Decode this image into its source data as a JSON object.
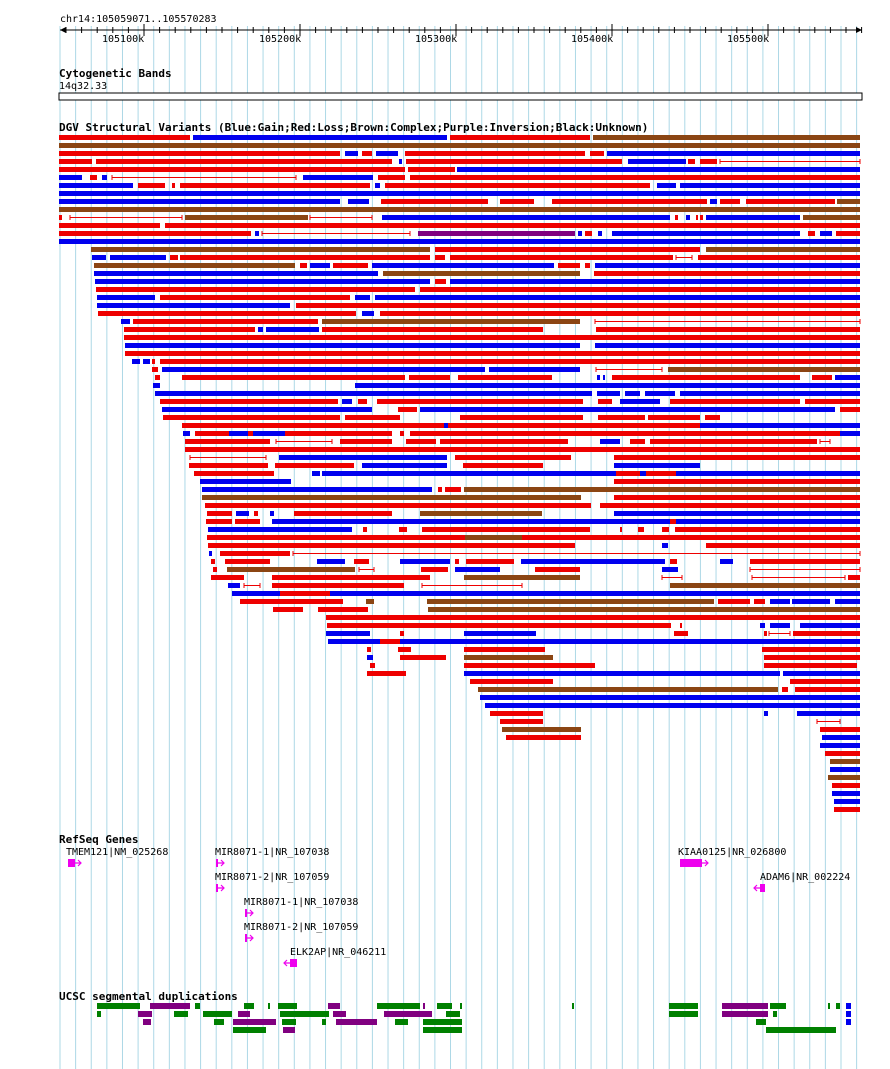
{
  "locus": "chr14:105059071..105570283",
  "ruler": {
    "ticks": [
      "105100k",
      "105200k",
      "105300k",
      "105400k",
      "105500k"
    ]
  },
  "cytoband": {
    "title": "Cytogenetic Bands",
    "band": "14q32.33"
  },
  "dgv": {
    "title": "DGV Structural Variants (Blue:Gain;Red:Loss;Brown:Complex;Purple:Inversion;Black:Unknown)"
  },
  "refseq": {
    "title": "RefSeq Genes",
    "genes": [
      {
        "label": "TMEM121|NM_025268",
        "strand": "+"
      },
      {
        "label": "MIR8071-1|NR_107038",
        "strand": "+"
      },
      {
        "label": "MIR8071-2|NR_107059",
        "strand": "+"
      },
      {
        "label": "MIR8071-1|NR_107038",
        "strand": "+"
      },
      {
        "label": "MIR8071-2|NR_107059",
        "strand": "+"
      },
      {
        "label": "ELK2AP|NR_046211",
        "strand": "-"
      },
      {
        "label": "KIAA0125|NR_026800",
        "strand": "+"
      },
      {
        "label": "ADAM6|NR_002224",
        "strand": "-"
      }
    ]
  },
  "segdup": {
    "title": "UCSC segmental duplications"
  },
  "colors": {
    "gain": "#0000ee",
    "loss": "#ee0000",
    "complex": "#8b4513",
    "inversion": "#800080",
    "unknown": "#000000",
    "gene": "#ee00ee",
    "grid": "#add8e6",
    "segdup_green": "#008000",
    "segdup_purple": "#800080"
  }
}
